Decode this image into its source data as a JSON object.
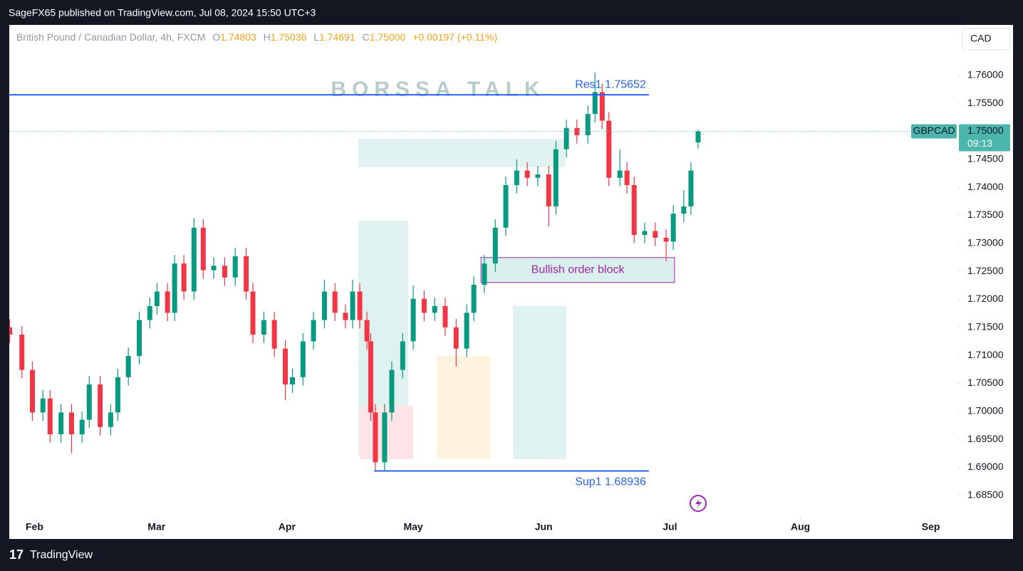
{
  "header": {
    "publisher": "SageFX65 published on TradingView.com, Jul 08, 2024 15:50 UTC+3",
    "footer": "TradingView"
  },
  "chart_data": {
    "type": "candlestick",
    "legend": {
      "name": "British Pound / Canadian Dollar, 4h, FXCM",
      "open_label": "O",
      "open": "1.74803",
      "high_label": "H",
      "high": "1.75036",
      "low_label": "L",
      "low": "1.74691",
      "close_label": "C",
      "close": "1.75000",
      "change": "+0.00197 (+0.11%)"
    },
    "currency": "CAD",
    "watermark": "BORSSA TALK",
    "up_color": "#089981",
    "down_color": "#f23645",
    "x": [
      26.1,
      29.0,
      31.5,
      34.0,
      35.7,
      38.3,
      40.8,
      43.3,
      45.0,
      47.6,
      50.1,
      51.8,
      54.3,
      56.9,
      59.4,
      61.1,
      63.6,
      65.3,
      67.5,
      69.9,
      72.1,
      74.6,
      77.2,
      79.7,
      82.3,
      83.9,
      86.5,
      89.0,
      91.6,
      93.3,
      95.8,
      98.3,
      100.9,
      103.4,
      105.9,
      107.6,
      109.3,
      111.0,
      111.9,
      113.0,
      115.2,
      116.9,
      119.5,
      122.0,
      124.6,
      127.1,
      129.6,
      132.2,
      134.7,
      136.4,
      138.9,
      141.5,
      144.0,
      146.6,
      149.1,
      151.6,
      154.2,
      155.9,
      158.4,
      160.9,
      163.5,
      165.2,
      166.9,
      168.5,
      171.1,
      172.8,
      174.5,
      177.0,
      179.5,
      182.1,
      183.8,
      186.3,
      188.0,
      189.7
    ],
    "open": [
      1.715,
      1.7137,
      1.7074,
      1.6998,
      1.7023,
      1.6959,
      1.6998,
      1.6959,
      1.6985,
      1.7048,
      1.6972,
      1.6998,
      1.7061,
      1.7099,
      1.7163,
      1.7188,
      1.7214,
      1.7176,
      1.7264,
      1.7214,
      1.7328,
      1.7252,
      1.726,
      1.7239,
      1.7277,
      1.7214,
      1.7137,
      1.7163,
      1.7112,
      1.7048,
      1.7061,
      1.7125,
      1.7163,
      1.7214,
      1.7176,
      1.7163,
      1.7214,
      1.7163,
      1.7125,
      1.6998,
      1.6909,
      1.6998,
      1.7074,
      1.7125,
      1.7201,
      1.7176,
      1.7188,
      1.715,
      1.7112,
      1.7176,
      1.7226,
      1.7264,
      1.7328,
      1.7404,
      1.743,
      1.7417,
      1.7423,
      1.7366,
      1.7468,
      1.7506,
      1.7493,
      1.7531,
      1.757,
      1.7519,
      1.7417,
      1.743,
      1.7404,
      1.7315,
      1.7322,
      1.731,
      1.7303,
      1.7353,
      1.7366,
      1.74803
    ],
    "high": [
      1.7165,
      1.7152,
      1.7089,
      1.7038,
      1.7038,
      1.7013,
      1.7013,
      1.7,
      1.7063,
      1.7063,
      1.7013,
      1.7076,
      1.7114,
      1.7178,
      1.7203,
      1.7229,
      1.7229,
      1.7279,
      1.7279,
      1.7345,
      1.7343,
      1.7275,
      1.7275,
      1.7292,
      1.7292,
      1.7229,
      1.7178,
      1.7178,
      1.7127,
      1.7076,
      1.714,
      1.7178,
      1.7235,
      1.7229,
      1.7191,
      1.7235,
      1.7229,
      1.7178,
      1.714,
      1.7013,
      1.7013,
      1.7089,
      1.714,
      1.7225,
      1.7216,
      1.7203,
      1.7203,
      1.7165,
      1.7191,
      1.7241,
      1.7279,
      1.7343,
      1.7419,
      1.745,
      1.7445,
      1.7438,
      1.7438,
      1.7483,
      1.7521,
      1.7521,
      1.7546,
      1.7605,
      1.7585,
      1.7534,
      1.7468,
      1.7445,
      1.7419,
      1.7337,
      1.7337,
      1.7325,
      1.7368,
      1.7395,
      1.7445,
      1.75036
    ],
    "low": [
      1.7122,
      1.7059,
      1.6983,
      1.6983,
      1.6944,
      1.6944,
      1.6925,
      1.6944,
      1.697,
      1.6957,
      1.6957,
      1.6983,
      1.7046,
      1.7084,
      1.7148,
      1.7173,
      1.7161,
      1.7161,
      1.7199,
      1.7199,
      1.7237,
      1.7237,
      1.7224,
      1.7224,
      1.7199,
      1.7122,
      1.7122,
      1.7097,
      1.702,
      1.7033,
      1.7046,
      1.711,
      1.7148,
      1.7161,
      1.7148,
      1.7148,
      1.7148,
      1.711,
      1.6983,
      1.68936,
      1.6894,
      1.6983,
      1.7059,
      1.711,
      1.7161,
      1.7161,
      1.7135,
      1.708,
      1.7097,
      1.7161,
      1.7211,
      1.7249,
      1.7313,
      1.7389,
      1.7402,
      1.7402,
      1.733,
      1.7351,
      1.7453,
      1.7478,
      1.7478,
      1.7516,
      1.7504,
      1.7402,
      1.7402,
      1.7389,
      1.73,
      1.73,
      1.7295,
      1.7268,
      1.7288,
      1.7338,
      1.7351,
      1.74691
    ],
    "close": [
      1.7137,
      1.7074,
      1.6998,
      1.7023,
      1.6959,
      1.6998,
      1.6959,
      1.6985,
      1.7048,
      1.6972,
      1.6998,
      1.7061,
      1.7099,
      1.7163,
      1.7188,
      1.7214,
      1.7176,
      1.7264,
      1.7214,
      1.7328,
      1.7252,
      1.726,
      1.7239,
      1.7277,
      1.7214,
      1.7137,
      1.7163,
      1.7112,
      1.7048,
      1.7061,
      1.7125,
      1.7163,
      1.7214,
      1.7176,
      1.7163,
      1.7214,
      1.7163,
      1.7125,
      1.6998,
      1.6909,
      1.6998,
      1.7074,
      1.7125,
      1.7201,
      1.7176,
      1.7188,
      1.715,
      1.7112,
      1.7176,
      1.7226,
      1.7264,
      1.7328,
      1.7404,
      1.743,
      1.7417,
      1.7423,
      1.7366,
      1.7468,
      1.7506,
      1.7493,
      1.7531,
      1.757,
      1.7519,
      1.7417,
      1.743,
      1.7404,
      1.7315,
      1.7322,
      1.731,
      1.7303,
      1.7353,
      1.7366,
      1.743,
      1.75
    ],
    "xlim": [
      26,
      251.5
    ],
    "xticks": [
      {
        "value": 32,
        "label": "Feb"
      },
      {
        "value": 61,
        "label": "Mar"
      },
      {
        "value": 92,
        "label": "Apr"
      },
      {
        "value": 122,
        "label": "May"
      },
      {
        "value": 153,
        "label": "Jun"
      },
      {
        "value": 183,
        "label": "Jul"
      },
      {
        "value": 214,
        "label": "Aug"
      },
      {
        "value": 245,
        "label": "Sep"
      }
    ],
    "ylim": [
      1.6809,
      1.769
    ],
    "yticks": [
      {
        "value": 1.685,
        "label": "1.68500"
      },
      {
        "value": 1.69,
        "label": "1.69000"
      },
      {
        "value": 1.695,
        "label": "1.69500"
      },
      {
        "value": 1.7,
        "label": "1.70000"
      },
      {
        "value": 1.705,
        "label": "1.70500"
      },
      {
        "value": 1.71,
        "label": "1.71000"
      },
      {
        "value": 1.715,
        "label": "1.71500"
      },
      {
        "value": 1.72,
        "label": "1.72000"
      },
      {
        "value": 1.725,
        "label": "1.72500"
      },
      {
        "value": 1.73,
        "label": "1.73000"
      },
      {
        "value": 1.735,
        "label": "1.73500"
      },
      {
        "value": 1.74,
        "label": "1.74000"
      },
      {
        "value": 1.745,
        "label": "1.74500"
      },
      {
        "value": 1.75,
        "label": "1.75000"
      },
      {
        "value": 1.755,
        "label": "1.75500"
      },
      {
        "value": 1.76,
        "label": "1.76000"
      }
    ],
    "last_price": {
      "symbol": "GBPCAD",
      "value": 1.75,
      "label": "1.75000",
      "countdown": "09:13",
      "color": "#4db6ac"
    },
    "levels": [
      {
        "text": "Res1 1.75652",
        "value": 1.75652,
        "x": [
          26,
          178
        ],
        "color": "#2962ff"
      },
      {
        "text": "Sup1 1.68936",
        "value": 1.68936,
        "x": [
          112.7,
          178
        ],
        "color": "#2962ff"
      }
    ],
    "zones": [
      {
        "text": "Bullish order block",
        "top": 1.72746,
        "bottom": 1.72301,
        "x": [
          138.1,
          184.1
        ],
        "color": "#9c27b0"
      }
    ]
  }
}
